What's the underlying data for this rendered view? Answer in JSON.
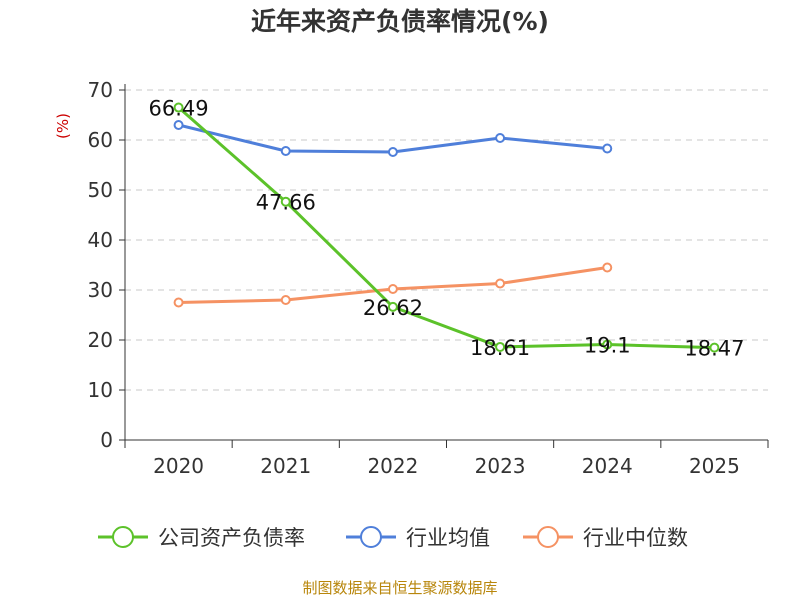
{
  "chart_data": {
    "type": "line",
    "title": "近年来资产负债率情况(%)",
    "y_unit": "(%)",
    "categories": [
      "2020",
      "2021",
      "2022",
      "2023",
      "2024",
      "2025"
    ],
    "ylim": [
      0,
      70
    ],
    "yticks": [
      0,
      10,
      20,
      30,
      40,
      50,
      60,
      70
    ],
    "grid": true,
    "legend_position": "bottom",
    "series": [
      {
        "name": "公司资产负债率",
        "color": "#5cc22a",
        "values": [
          66.49,
          47.66,
          26.62,
          18.61,
          19.1,
          18.47
        ],
        "data_labels": [
          "66.49",
          "47.66",
          "26.62",
          "18.61",
          "19.1",
          "18.47"
        ]
      },
      {
        "name": "行业均值",
        "color": "#4f7fda",
        "values": [
          63.0,
          57.8,
          57.6,
          60.4,
          58.3,
          null
        ]
      },
      {
        "name": "行业中位数",
        "color": "#f59263",
        "values": [
          27.5,
          28.0,
          30.2,
          31.3,
          34.5,
          null
        ]
      }
    ]
  },
  "unit_color": "#cc0000",
  "footer": {
    "source": "制图数据来自恒生聚源数据库"
  }
}
